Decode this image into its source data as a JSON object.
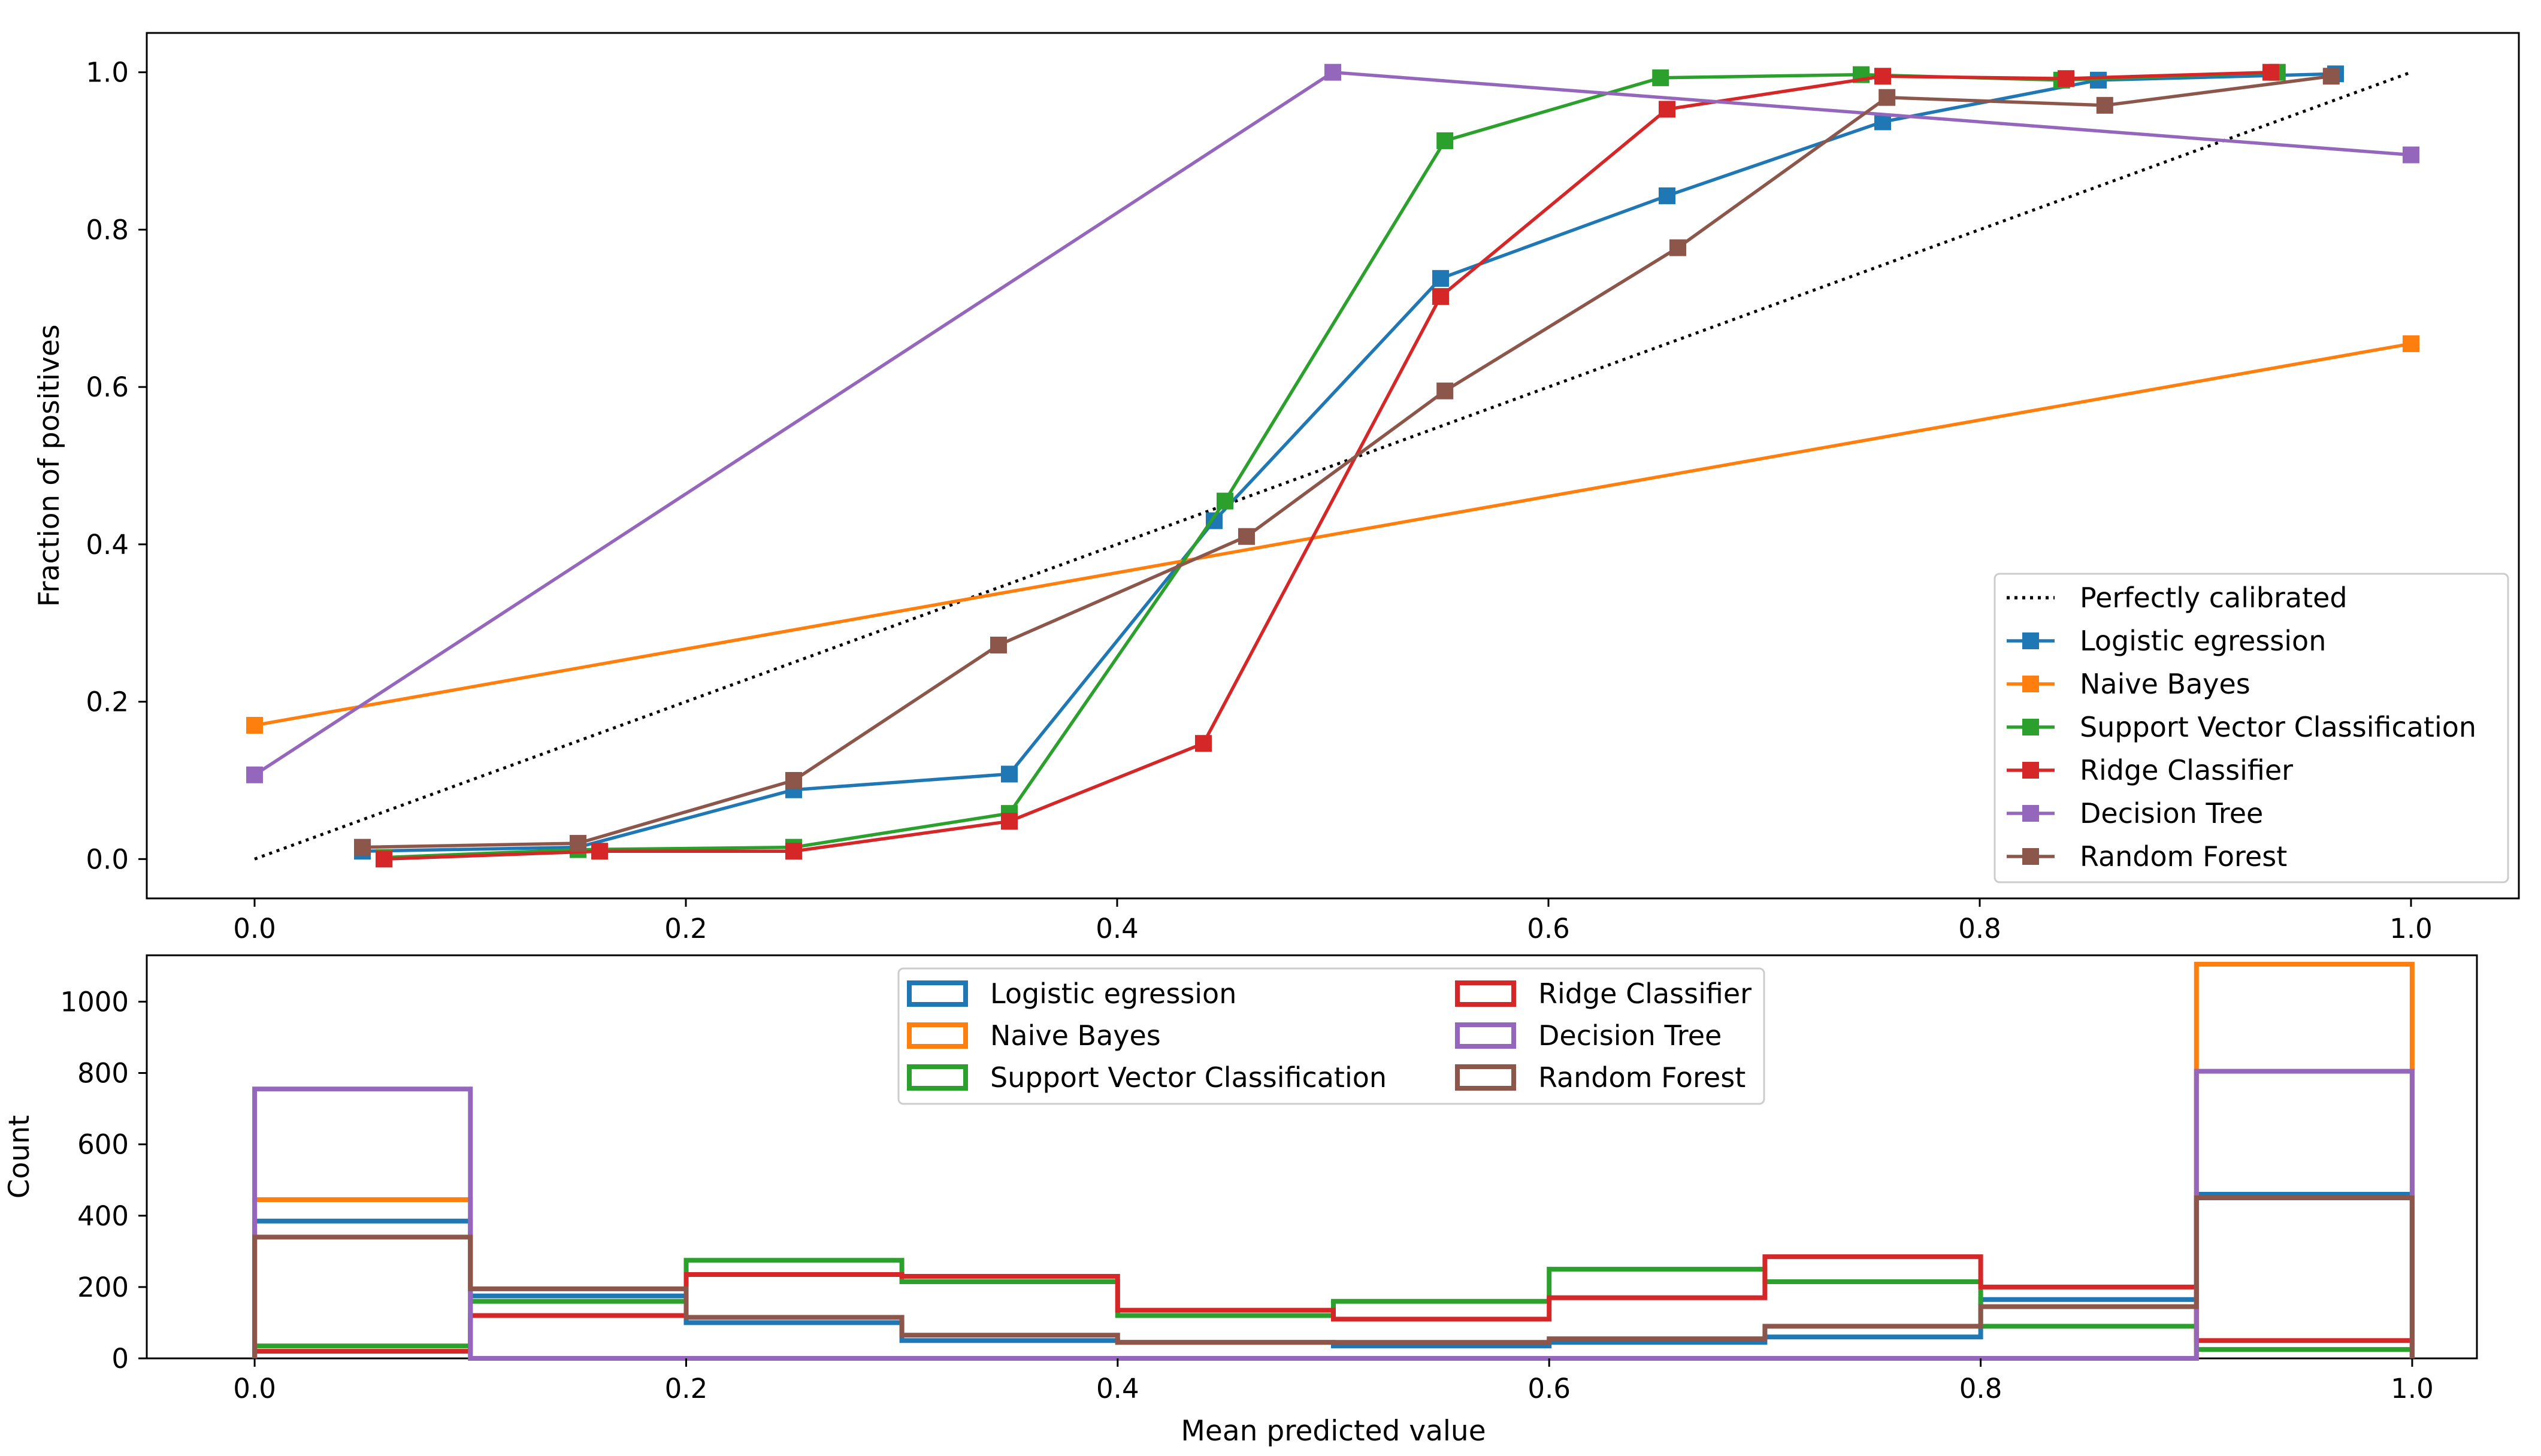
{
  "chart_data": [
    {
      "type": "line",
      "title": "",
      "xlabel": "",
      "ylabel": "Fraction of positives",
      "xlim": [
        -0.05,
        1.05
      ],
      "ylim": [
        -0.05,
        1.05
      ],
      "xticks": [
        "0.0",
        "0.2",
        "0.4",
        "0.6",
        "0.8",
        "1.0"
      ],
      "yticks": [
        "0.0",
        "0.2",
        "0.4",
        "0.6",
        "0.8",
        "1.0"
      ],
      "legend_position": "lower-right",
      "reference": {
        "name": "Perfectly calibrated",
        "x": [
          0,
          1
        ],
        "y": [
          0,
          1
        ],
        "color": "#000000",
        "style": "dotted"
      },
      "series": [
        {
          "name": "Logistic egression",
          "color": "#1f77b4",
          "x": [
            0.05,
            0.15,
            0.25,
            0.35,
            0.445,
            0.55,
            0.655,
            0.755,
            0.855,
            0.965
          ],
          "y": [
            0.01,
            0.015,
            0.088,
            0.108,
            0.43,
            0.738,
            0.843,
            0.937,
            0.99,
            0.998
          ]
        },
        {
          "name": "Naive Bayes",
          "color": "#ff7f0e",
          "x": [
            0.0,
            1.0
          ],
          "y": [
            0.17,
            0.655
          ]
        },
        {
          "name": "Support Vector Classification",
          "color": "#2ca02c",
          "x": [
            0.06,
            0.15,
            0.25,
            0.35,
            0.45,
            0.552,
            0.652,
            0.745,
            0.838,
            0.938
          ],
          "y": [
            0.002,
            0.012,
            0.015,
            0.058,
            0.455,
            0.913,
            0.993,
            0.997,
            0.99,
            1.0
          ]
        },
        {
          "name": "Ridge Classifier",
          "color": "#d62728",
          "x": [
            0.06,
            0.16,
            0.25,
            0.35,
            0.44,
            0.55,
            0.655,
            0.755,
            0.84,
            0.935
          ],
          "y": [
            0.0,
            0.01,
            0.01,
            0.048,
            0.147,
            0.715,
            0.953,
            0.995,
            0.992,
            1.0
          ]
        },
        {
          "name": "Decision Tree",
          "color": "#9467bd",
          "x": [
            0.0,
            0.5,
            1.0
          ],
          "y": [
            0.107,
            1.0,
            0.895
          ]
        },
        {
          "name": "Random Forest",
          "color": "#8c564b",
          "x": [
            0.05,
            0.15,
            0.25,
            0.345,
            0.46,
            0.552,
            0.66,
            0.757,
            0.858,
            0.963
          ],
          "y": [
            0.015,
            0.02,
            0.1,
            0.272,
            0.41,
            0.595,
            0.777,
            0.968,
            0.958,
            0.995
          ]
        }
      ]
    },
    {
      "type": "histogram",
      "title": "",
      "xlabel": "Mean predicted value",
      "ylabel": "Count",
      "xlim": [
        -0.05,
        1.03
      ],
      "ylim": [
        0,
        1130
      ],
      "xticks": [
        "0.0",
        "0.2",
        "0.4",
        "0.6",
        "0.8",
        "1.0"
      ],
      "yticks": [
        "0",
        "200",
        "400",
        "600",
        "800",
        "1000"
      ],
      "legend_position": "upper-center",
      "bin_edges": [
        0.0,
        0.1,
        0.2,
        0.3,
        0.4,
        0.5,
        0.6,
        0.7,
        0.8,
        0.9,
        1.0
      ],
      "series": [
        {
          "name": "Logistic egression",
          "color": "#1f77b4",
          "counts": [
            385,
            175,
            100,
            50,
            45,
            35,
            45,
            60,
            165,
            460
          ]
        },
        {
          "name": "Naive Bayes",
          "color": "#ff7f0e",
          "counts": [
            445,
            0,
            0,
            0,
            0,
            0,
            0,
            0,
            0,
            1105
          ]
        },
        {
          "name": "Support Vector Classification",
          "color": "#2ca02c",
          "counts": [
            35,
            160,
            275,
            215,
            120,
            160,
            250,
            215,
            90,
            25
          ]
        },
        {
          "name": "Ridge Classifier",
          "color": "#d62728",
          "counts": [
            20,
            120,
            235,
            230,
            135,
            110,
            170,
            285,
            200,
            50
          ]
        },
        {
          "name": "Decision Tree",
          "color": "#9467bd",
          "counts": [
            755,
            0,
            0,
            0,
            0,
            0,
            0,
            0,
            0,
            805
          ]
        },
        {
          "name": "Random Forest",
          "color": "#8c564b",
          "counts": [
            340,
            195,
            115,
            65,
            45,
            45,
            55,
            90,
            145,
            450
          ]
        }
      ]
    }
  ]
}
